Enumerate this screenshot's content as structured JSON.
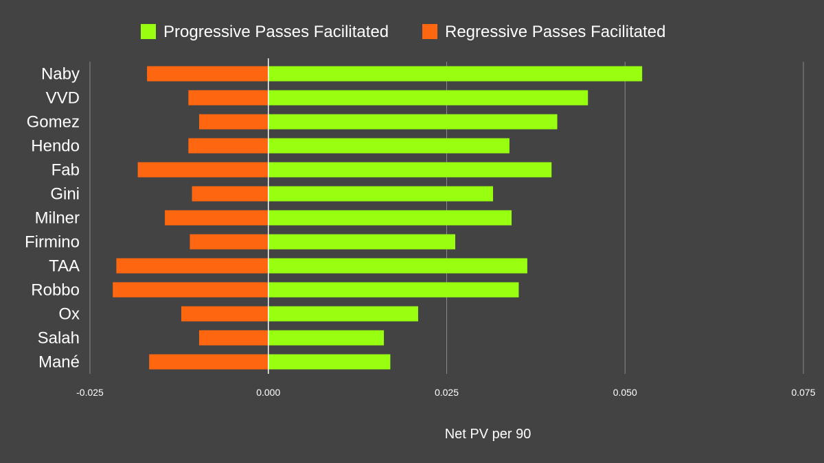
{
  "chart_data": {
    "type": "bar",
    "orientation": "horizontal",
    "title": "",
    "xlabel": "Net PV per 90",
    "ylabel": "",
    "xlim": [
      -0.025,
      0.075
    ],
    "xticks": [
      -0.025,
      0.0,
      0.025,
      0.05,
      0.075
    ],
    "xtick_labels": [
      "-0.025",
      "0.000",
      "0.025",
      "0.050",
      "0.075"
    ],
    "grid": true,
    "legend_position": "top",
    "background": "#434343",
    "categories": [
      "Naby",
      "VVD",
      "Gomez",
      "Hendo",
      "Fab",
      "Gini",
      "Milner",
      "Firmino",
      "TAA",
      "Robbo",
      "Ox",
      "Salah",
      "Mané"
    ],
    "series": [
      {
        "name": "Progressive Passes Facilitated",
        "color": "#99ff11",
        "values": [
          0.0524,
          0.0448,
          0.0405,
          0.0338,
          0.0397,
          0.0315,
          0.0341,
          0.0262,
          0.0363,
          0.0351,
          0.021,
          0.0162,
          0.0171
        ]
      },
      {
        "name": "Regressive Passes Facilitated",
        "color": "#ff6610",
        "values": [
          -0.017,
          -0.0112,
          -0.0097,
          -0.0112,
          -0.0183,
          -0.0107,
          -0.0145,
          -0.011,
          -0.0213,
          -0.0218,
          -0.0122,
          -0.0097,
          -0.0167
        ]
      }
    ]
  }
}
